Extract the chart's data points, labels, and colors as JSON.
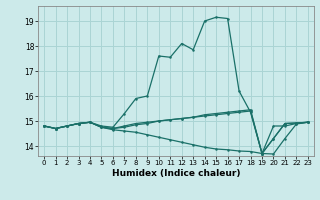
{
  "title": "",
  "xlabel": "Humidex (Indice chaleur)",
  "bg_color": "#cceaea",
  "grid_color": "#aad4d4",
  "line_color": "#1a7068",
  "x_ticks": [
    0,
    1,
    2,
    3,
    4,
    5,
    6,
    7,
    8,
    9,
    10,
    11,
    12,
    13,
    14,
    15,
    16,
    17,
    18,
    19,
    20,
    21,
    22,
    23
  ],
  "ylim": [
    13.6,
    19.6
  ],
  "xlim": [
    -0.5,
    23.5
  ],
  "yticks": [
    14,
    15,
    16,
    17,
    18,
    19
  ],
  "series": [
    [
      14.8,
      14.7,
      14.8,
      14.9,
      14.95,
      14.8,
      14.75,
      15.3,
      15.9,
      16.0,
      17.6,
      17.55,
      18.1,
      17.85,
      19.0,
      19.15,
      19.1,
      16.2,
      15.35,
      13.7,
      14.8,
      14.8,
      14.9,
      14.95
    ],
    [
      14.8,
      14.7,
      14.8,
      14.9,
      14.95,
      14.75,
      14.7,
      14.75,
      14.85,
      14.9,
      15.0,
      15.05,
      15.1,
      15.15,
      15.2,
      15.25,
      15.3,
      15.35,
      15.4,
      13.7,
      14.3,
      14.9,
      14.92,
      14.95
    ],
    [
      14.8,
      14.7,
      14.8,
      14.9,
      14.95,
      14.75,
      14.65,
      14.6,
      14.55,
      14.45,
      14.35,
      14.25,
      14.15,
      14.05,
      13.95,
      13.88,
      13.85,
      13.8,
      13.78,
      13.7,
      13.68,
      14.3,
      14.88,
      14.95
    ],
    [
      14.8,
      14.7,
      14.8,
      14.9,
      14.95,
      14.75,
      14.7,
      14.8,
      14.9,
      14.95,
      15.0,
      15.05,
      15.1,
      15.15,
      15.25,
      15.3,
      15.35,
      15.4,
      15.45,
      13.7,
      14.3,
      14.9,
      14.92,
      14.95
    ]
  ]
}
